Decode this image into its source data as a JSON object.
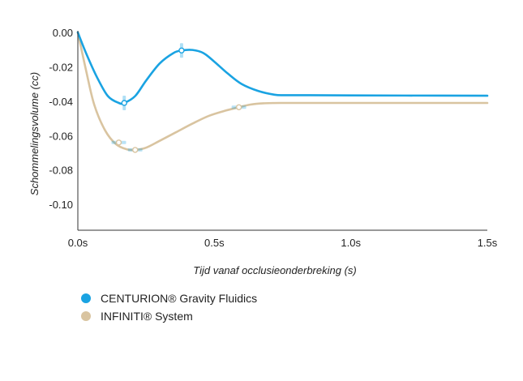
{
  "chart_data": {
    "type": "line",
    "xlabel": "Tijd vanaf occlusieonderbreking (s)",
    "ylabel": "Schommelingsvolume (cc)",
    "xlim": [
      0,
      1.5
    ],
    "ylim": [
      -0.115,
      0
    ],
    "x_ticks": [
      {
        "value": 0,
        "label": "0.0s"
      },
      {
        "value": 0.5,
        "label": "0.5s"
      },
      {
        "value": 1.0,
        "label": "1.0s"
      },
      {
        "value": 1.5,
        "label": "1.5s"
      }
    ],
    "y_ticks": [
      {
        "value": 0,
        "label": "0.00"
      },
      {
        "value": -0.02,
        "label": "-0.02"
      },
      {
        "value": -0.04,
        "label": "-0.04"
      },
      {
        "value": -0.06,
        "label": "-0.06"
      },
      {
        "value": -0.08,
        "label": "-0.08"
      },
      {
        "value": -0.1,
        "label": "-0.10"
      }
    ],
    "grid": false,
    "legend_position": "bottom-left",
    "series": [
      {
        "name": "CENTURION® Gravity Fluidics",
        "color": "#1aa3e2",
        "x": [
          0,
          0.03,
          0.07,
          0.11,
          0.15,
          0.17,
          0.21,
          0.25,
          0.3,
          0.35,
          0.38,
          0.42,
          0.46,
          0.5,
          0.55,
          0.6,
          0.66,
          0.72,
          0.76,
          0.85,
          1.0,
          1.2,
          1.5
        ],
        "values": [
          0,
          -0.012,
          -0.026,
          -0.037,
          -0.041,
          -0.041,
          -0.037,
          -0.028,
          -0.018,
          -0.012,
          -0.0105,
          -0.0102,
          -0.012,
          -0.017,
          -0.024,
          -0.03,
          -0.034,
          -0.0362,
          -0.0365,
          -0.0365,
          -0.0366,
          -0.0367,
          -0.0368
        ],
        "markers": [
          {
            "x": 0.17,
            "y": -0.041
          },
          {
            "x": 0.38,
            "y": -0.0105
          }
        ]
      },
      {
        "name": "INFINITI® System",
        "color": "#d9c4a0",
        "x": [
          0,
          0.03,
          0.06,
          0.1,
          0.14,
          0.18,
          0.21,
          0.25,
          0.3,
          0.36,
          0.42,
          0.48,
          0.54,
          0.59,
          0.63,
          0.68,
          0.75,
          0.9,
          1.1,
          1.3,
          1.5
        ],
        "values": [
          0,
          -0.022,
          -0.042,
          -0.057,
          -0.065,
          -0.068,
          -0.0683,
          -0.067,
          -0.063,
          -0.058,
          -0.053,
          -0.0485,
          -0.0455,
          -0.0435,
          -0.042,
          -0.0412,
          -0.041,
          -0.041,
          -0.041,
          -0.041,
          -0.041
        ],
        "markers": [
          {
            "x": 0.15,
            "y": -0.064
          },
          {
            "x": 0.21,
            "y": -0.0683
          },
          {
            "x": 0.59,
            "y": -0.0435
          }
        ]
      }
    ]
  }
}
